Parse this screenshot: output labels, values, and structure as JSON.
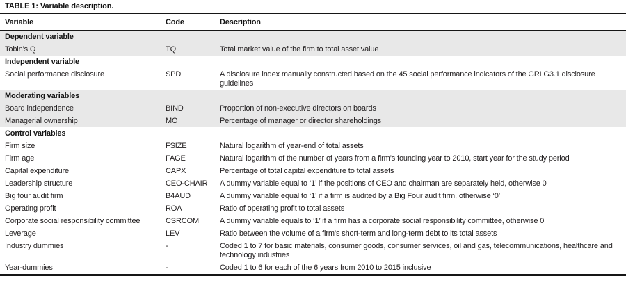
{
  "table": {
    "title": "TABLE 1: Variable description.",
    "columns": [
      "Variable",
      "Code",
      "Description"
    ],
    "colors": {
      "shaded_row": "#e8e8e8",
      "text": "#242122",
      "text_strong": "#141414",
      "rule": "#161616",
      "background": "#ffffff"
    },
    "sections": [
      {
        "header": "Dependent variable",
        "shaded": true,
        "rows": [
          {
            "variable": "Tobin’s Q",
            "code": "TQ",
            "description": "Total market value of the firm to total asset value"
          }
        ]
      },
      {
        "header": "Independent variable",
        "shaded": false,
        "rows": [
          {
            "variable": "Social performance disclosure",
            "code": "SPD",
            "description": "A disclosure index manually constructed based on the 45 social performance indicators of the GRI G3.1 disclosure guidelines"
          }
        ]
      },
      {
        "header": "Moderating variables",
        "shaded": true,
        "rows": [
          {
            "variable": "Board independence",
            "code": "BIND",
            "description": "Proportion of non-executive directors on boards"
          },
          {
            "variable": "Managerial ownership",
            "code": "MO",
            "description": "Percentage of manager or director shareholdings"
          }
        ]
      },
      {
        "header": "Control variables",
        "shaded": false,
        "rows": [
          {
            "variable": "Firm size",
            "code": "FSIZE",
            "description": "Natural logarithm of year-end of total assets"
          },
          {
            "variable": "Firm age",
            "code": "FAGE",
            "description": "Natural logarithm of the number of years from a firm’s founding year to 2010, start year for the study period"
          },
          {
            "variable": "Capital expenditure",
            "code": "CAPX",
            "description": "Percentage of total capital expenditure to total assets"
          },
          {
            "variable": "Leadership structure",
            "code": "CEO-CHAIR",
            "description": "A dummy variable equal to ‘1’ if the positions of CEO and chairman are separately held, otherwise 0"
          },
          {
            "variable": "Big four audit firm",
            "code": "B4AUD",
            "description": "A dummy variable equal to ‘1’ if a firm is audited by a Big Four audit firm, otherwise ‘0’"
          },
          {
            "variable": "Operating profit",
            "code": "ROA",
            "description": "Ratio of operating profit to total assets"
          },
          {
            "variable": "Corporate social responsibility committee",
            "code": "CSRCOM",
            "description": "A dummy variable equals to ‘1’ if a firm has a corporate social responsibility committee, otherwise 0"
          },
          {
            "variable": "Leverage",
            "code": "LEV",
            "description": "Ratio between the volume of a firm’s short-term and long-term debt to its total assets"
          },
          {
            "variable": "Industry dummies",
            "code": "-",
            "description": "Coded 1 to 7 for basic materials, consumer goods, consumer services, oil and gas, telecommunications, healthcare and technology industries"
          },
          {
            "variable": "Year-dummies",
            "code": "-",
            "description": "Coded 1 to 6 for each of the 6 years from 2010 to 2015 inclusive"
          }
        ]
      }
    ]
  }
}
